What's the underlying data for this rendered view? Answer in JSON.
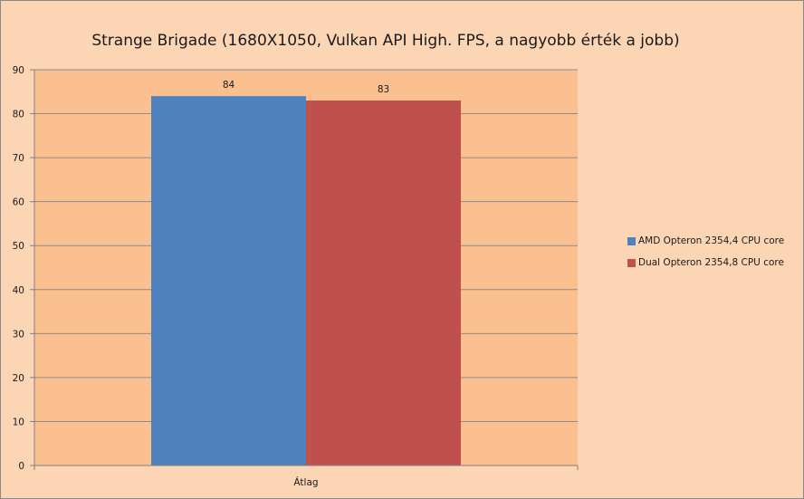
{
  "chart_data": {
    "type": "bar",
    "title": "Strange Brigade (1680X1050, Vulkan API High. FPS, a nagyobb érték a jobb)",
    "categories": [
      "Átlag"
    ],
    "series": [
      {
        "name": "AMD Opteron 2354,4 CPU core",
        "values": [
          84
        ],
        "color": "#4f81bd"
      },
      {
        "name": "Dual Opteron 2354,8 CPU core",
        "values": [
          83
        ],
        "color": "#c0504d"
      }
    ],
    "data_labels": [
      "84",
      "83"
    ],
    "ylim": [
      0,
      90
    ],
    "yticks": [
      "0",
      "10",
      "20",
      "30",
      "40",
      "50",
      "60",
      "70",
      "80",
      "90"
    ],
    "grid": true,
    "legend": "right",
    "plot_background": "#fac090",
    "chart_background": "#fcd5b5"
  }
}
